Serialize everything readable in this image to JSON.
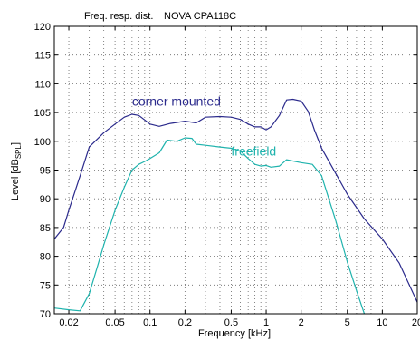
{
  "chart_data": {
    "type": "line",
    "title_left": "Freq. resp. dist.",
    "title_right": "NOVA CPA118C",
    "xlabel": "Frequency [kHz]",
    "ylabel_main": "Level [dB",
    "ylabel_sub": "SPL",
    "ylabel_end": "]",
    "xscale": "log",
    "xlim": [
      0.015,
      20
    ],
    "ylim": [
      70,
      120
    ],
    "grid": true,
    "x_ticks": [
      0.02,
      0.05,
      0.1,
      0.2,
      0.5,
      1,
      2,
      5,
      10,
      20
    ],
    "x_tick_labels": [
      "0.02",
      "0.05",
      "0.1",
      "0.2",
      "0.5",
      "1",
      "2",
      "5",
      "10",
      "20"
    ],
    "y_ticks": [
      70,
      75,
      80,
      85,
      90,
      95,
      100,
      105,
      110,
      115,
      120
    ],
    "y_tick_labels": [
      "70",
      "75",
      "80",
      "85",
      "90",
      "95",
      "100",
      "105",
      "110",
      "115",
      "120"
    ],
    "series": [
      {
        "name": "corner mounted",
        "color": "#2b2a8c",
        "x": [
          0.015,
          0.018,
          0.02,
          0.025,
          0.03,
          0.04,
          0.05,
          0.06,
          0.07,
          0.08,
          0.09,
          0.1,
          0.12,
          0.15,
          0.2,
          0.25,
          0.3,
          0.4,
          0.5,
          0.6,
          0.7,
          0.8,
          0.9,
          1.0,
          1.1,
          1.3,
          1.5,
          1.7,
          2.0,
          2.3,
          2.6,
          3.0,
          4.0,
          5.0,
          7.0,
          10,
          14,
          20
        ],
        "y": [
          83,
          85,
          88,
          94,
          99,
          101.5,
          103,
          104.2,
          104.7,
          104.5,
          103.7,
          103,
          102.6,
          103.1,
          103.5,
          103.2,
          104.2,
          104.3,
          104.2,
          103.8,
          103.0,
          102.5,
          102.5,
          102.0,
          102.5,
          104.5,
          107.2,
          107.3,
          107.0,
          105.2,
          102.0,
          98.8,
          94.3,
          90.8,
          86.5,
          83.0,
          78.8,
          72.0
        ]
      },
      {
        "name": "freefield",
        "color": "#1fb3ad",
        "x": [
          0.015,
          0.02,
          0.025,
          0.03,
          0.035,
          0.04,
          0.05,
          0.06,
          0.07,
          0.08,
          0.09,
          0.1,
          0.12,
          0.14,
          0.17,
          0.2,
          0.23,
          0.25,
          0.3,
          0.4,
          0.5,
          0.6,
          0.7,
          0.8,
          0.9,
          1.0,
          1.1,
          1.3,
          1.5,
          2.0,
          2.5,
          3.0,
          4.0,
          5.0,
          6.0,
          7.0
        ],
        "y": [
          71,
          70.7,
          70.5,
          73.5,
          78.0,
          82.0,
          88.0,
          92.0,
          95.0,
          96.0,
          96.5,
          97.0,
          98.0,
          100.2,
          100.0,
          100.6,
          100.5,
          99.5,
          99.3,
          99.0,
          98.8,
          98.3,
          97.0,
          96.0,
          95.7,
          95.8,
          95.5,
          95.7,
          96.8,
          96.3,
          96.0,
          94.0,
          86.0,
          79.0,
          74.0,
          70.0
        ]
      }
    ],
    "annotations": [
      {
        "text": "corner mounted",
        "color": "#2b2a8c",
        "x": 0.07,
        "y": 106.2
      },
      {
        "text": "freefield",
        "color": "#1fb3ad",
        "x": 0.5,
        "y": 97.5
      }
    ]
  }
}
